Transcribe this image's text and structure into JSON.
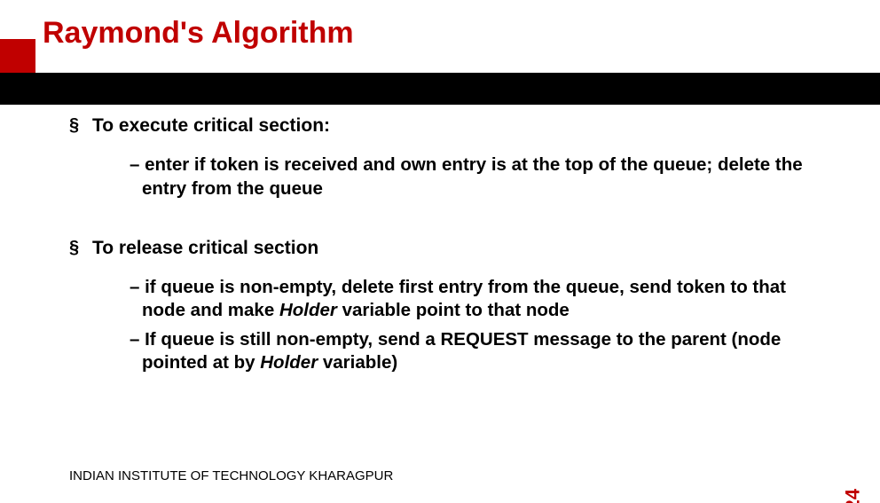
{
  "title": "Raymond's Algorithm",
  "title_color": "#c00000",
  "accent_block_color": "#c00000",
  "band_color": "#000000",
  "bullets": [
    {
      "mark": "§",
      "text": "To execute critical section:",
      "subs": [
        "– enter if token is received and own entry is at the top of the queue; delete the entry from the queue"
      ]
    },
    {
      "mark": "§",
      "text": "To release critical section",
      "subs": [
        "– if queue is non-empty, delete first entry from the queue, send token to that node and make <em>Holder</em> variable point to that node",
        "– If queue is still non-empty, send a REQUEST message to the parent (node pointed at by <em>Holder</em> variable)"
      ]
    }
  ],
  "footer": "INDIAN INSTITUTE OF TECHNOLOGY KHARAGPUR",
  "page_number": "24",
  "font_family": "Arial",
  "body_font_size_pt": 16,
  "title_font_size_pt": 26
}
